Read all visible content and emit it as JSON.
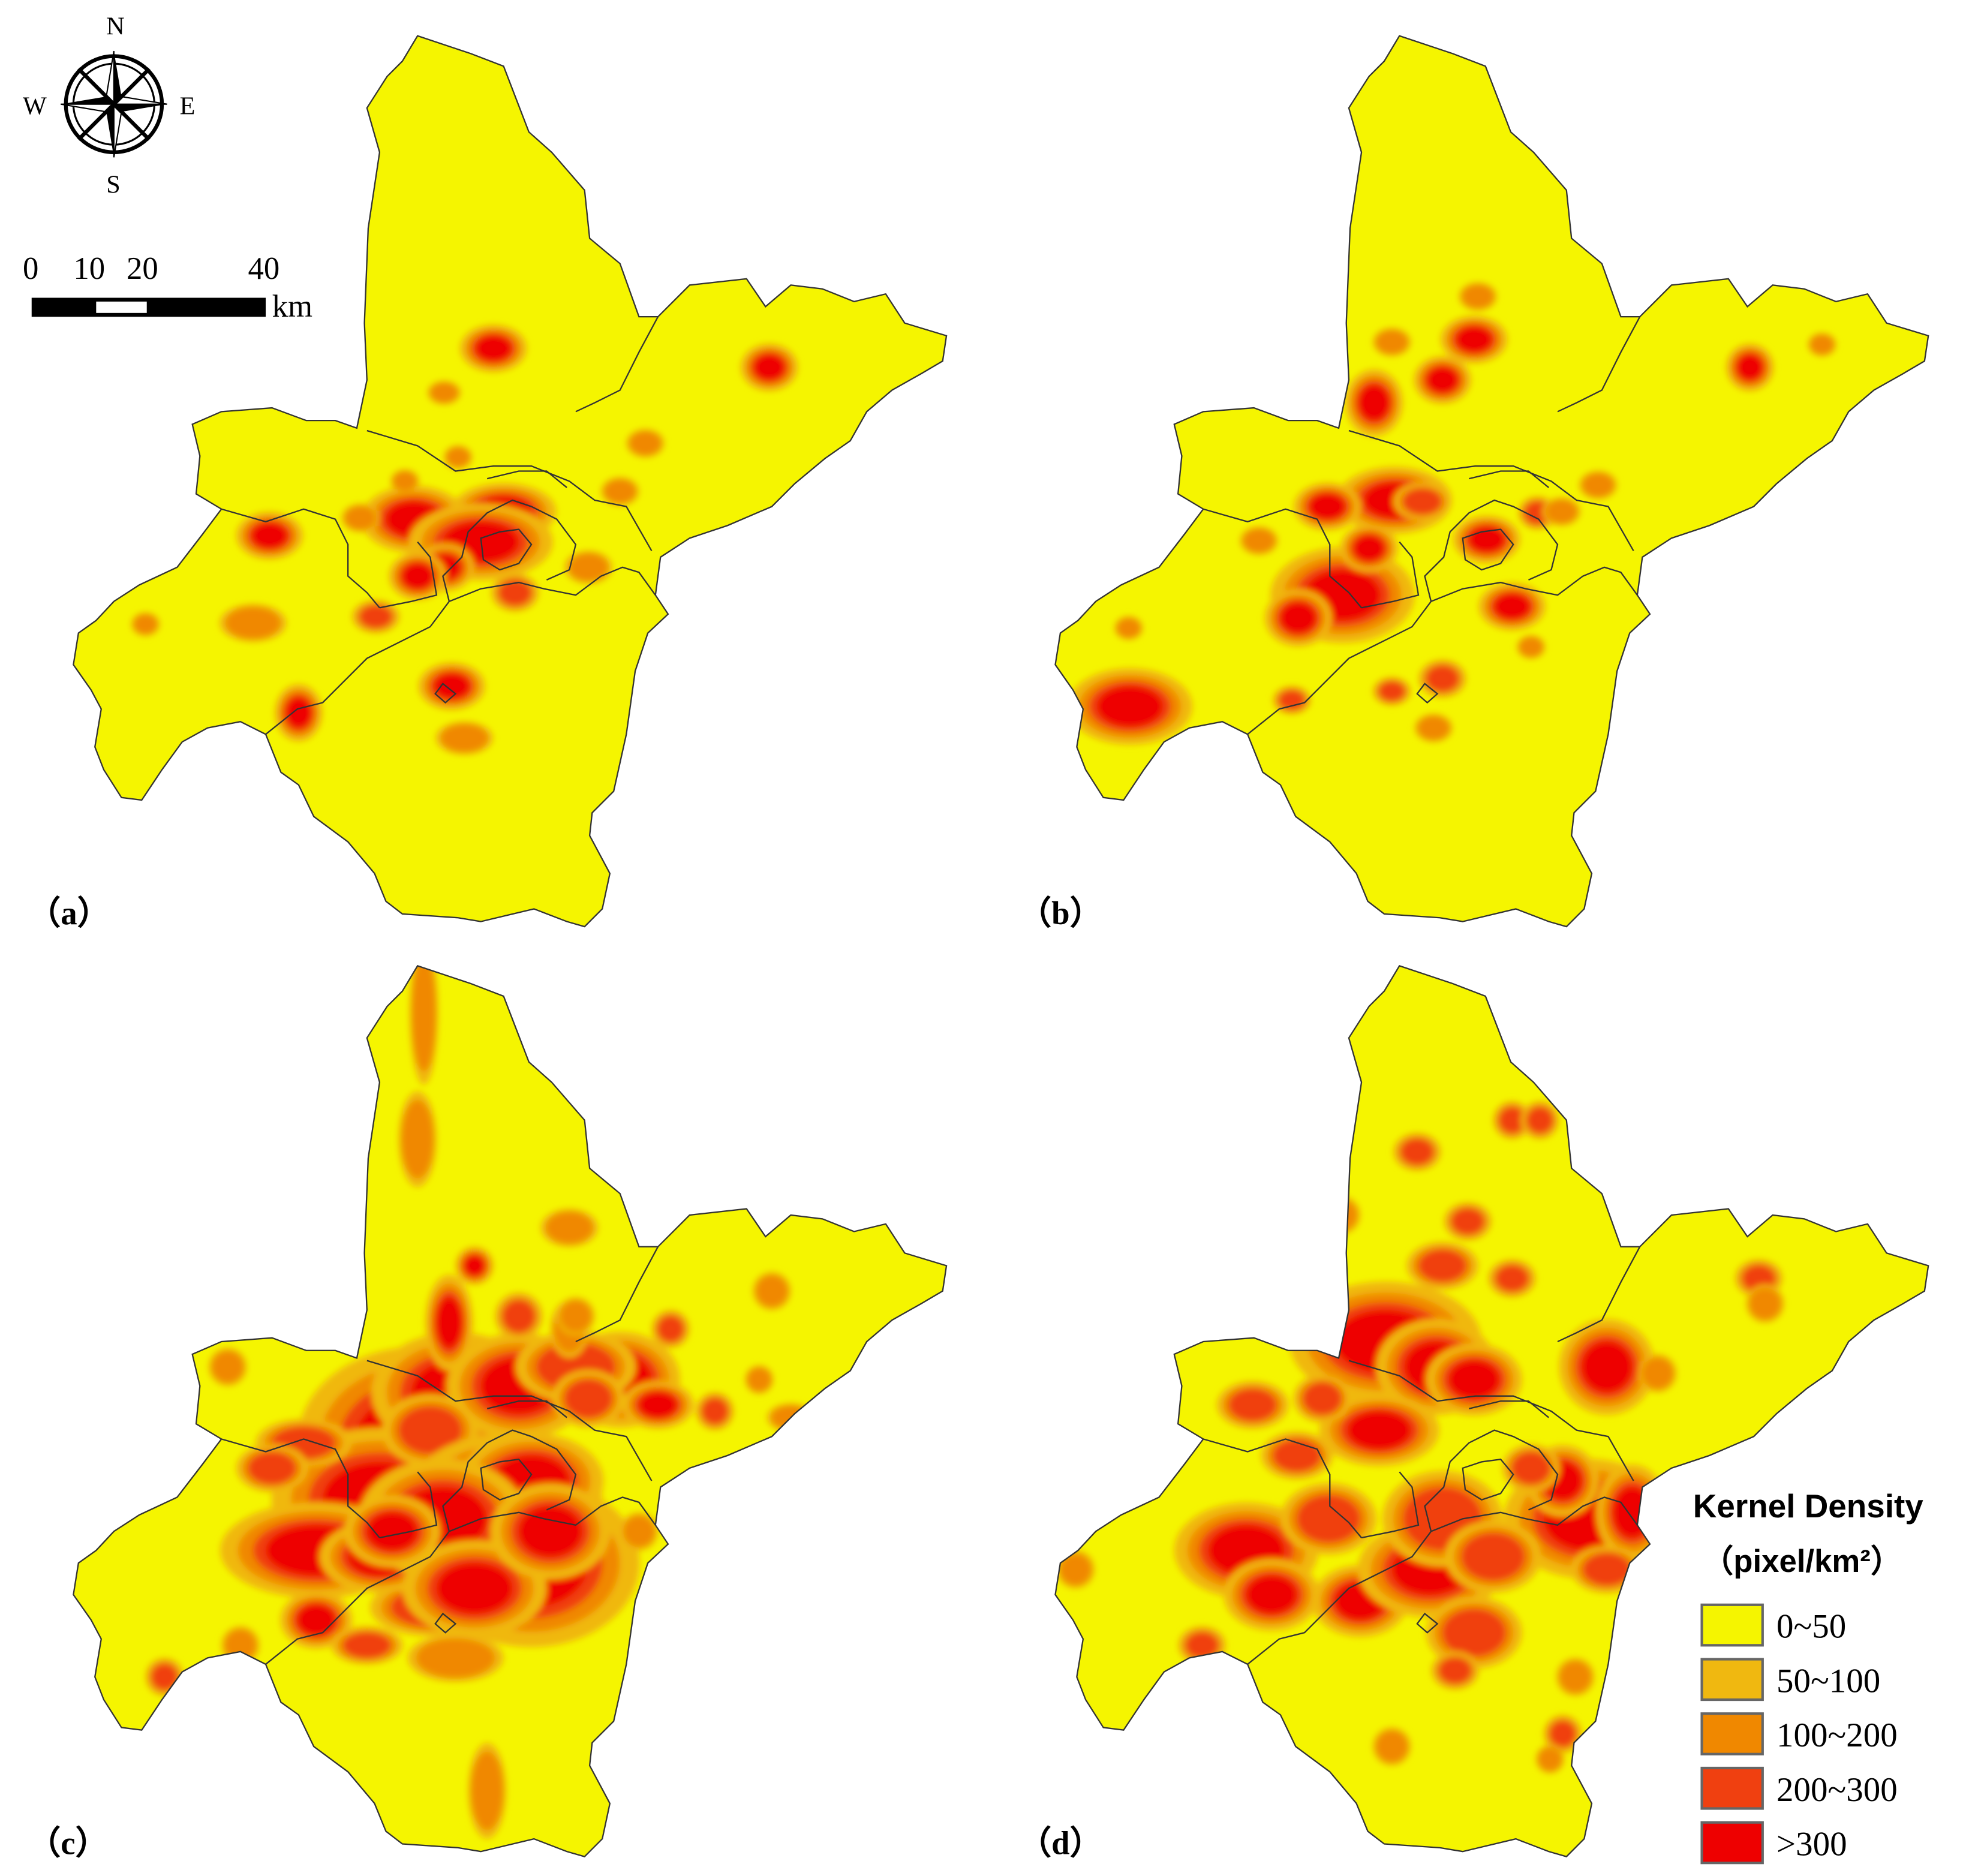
{
  "panels": [
    {
      "label": "（a）",
      "hotspots": [
        [
          390,
          275,
          14,
          10,
          4
        ],
        [
          608,
          290,
          12,
          10,
          4
        ],
        [
          213,
          423,
          14,
          10,
          4
        ],
        [
          327,
          410,
          22,
          14,
          4
        ],
        [
          398,
          404,
          22,
          12,
          4
        ],
        [
          380,
          428,
          30,
          16,
          4
        ],
        [
          352,
          448,
          12,
          10,
          4
        ],
        [
          330,
          455,
          12,
          10,
          4
        ],
        [
          297,
          487,
          10,
          7,
          3
        ],
        [
          200,
          492,
          14,
          8,
          2
        ],
        [
          236,
          563,
          10,
          12,
          4
        ],
        [
          357,
          542,
          14,
          10,
          4
        ],
        [
          367,
          583,
          12,
          7,
          2
        ],
        [
          351,
          310,
          7,
          5,
          2
        ],
        [
          407,
          468,
          10,
          8,
          3
        ],
        [
          465,
          448,
          10,
          7,
          2
        ],
        [
          510,
          350,
          8,
          6,
          2
        ],
        [
          490,
          388,
          8,
          6,
          2
        ],
        [
          320,
          380,
          6,
          5,
          2
        ],
        [
          285,
          409,
          8,
          6,
          2
        ],
        [
          115,
          493,
          6,
          5,
          2
        ],
        [
          362,
          361,
          6,
          5,
          2
        ]
      ]
    },
    {
      "label": "（b）",
      "hotspots": [
        [
          1086,
          318,
          12,
          14,
          4
        ],
        [
          1165,
          268,
          14,
          10,
          4
        ],
        [
          1140,
          300,
          12,
          10,
          4
        ],
        [
          1102,
          395,
          24,
          14,
          4
        ],
        [
          1049,
          400,
          14,
          10,
          4
        ],
        [
          1061,
          470,
          30,
          20,
          4
        ],
        [
          1082,
          433,
          12,
          10,
          4
        ],
        [
          1124,
          396,
          12,
          8,
          3
        ],
        [
          1175,
          426,
          14,
          10,
          4
        ],
        [
          1195,
          479,
          14,
          10,
          4
        ],
        [
          1215,
          405,
          8,
          7,
          3
        ],
        [
          1026,
          488,
          14,
          12,
          4
        ],
        [
          893,
          558,
          26,
          16,
          4
        ],
        [
          1021,
          553,
          8,
          6,
          3
        ],
        [
          1140,
          536,
          10,
          8,
          3
        ],
        [
          1100,
          546,
          8,
          6,
          3
        ],
        [
          1383,
          290,
          10,
          10,
          4
        ],
        [
          1263,
          383,
          8,
          6,
          2
        ],
        [
          1440,
          272,
          6,
          5,
          2
        ],
        [
          1168,
          234,
          8,
          6,
          2
        ],
        [
          1100,
          270,
          8,
          6,
          2
        ],
        [
          995,
          427,
          8,
          6,
          2
        ],
        [
          1234,
          404,
          8,
          6,
          2
        ],
        [
          1133,
          575,
          8,
          6,
          2
        ],
        [
          1210,
          511,
          6,
          5,
          2
        ],
        [
          892,
          496,
          6,
          5,
          2
        ]
      ]
    },
    {
      "label": "（c）",
      "hotspots": [
        [
          330,
          1140,
          50,
          40,
          4
        ],
        [
          390,
          1220,
          50,
          40,
          4
        ],
        [
          420,
          1235,
          45,
          35,
          4
        ],
        [
          360,
          1100,
          35,
          25,
          4
        ],
        [
          300,
          1185,
          45,
          30,
          4
        ],
        [
          250,
          1225,
          40,
          20,
          4
        ],
        [
          410,
          1095,
          30,
          22,
          4
        ],
        [
          490,
          1090,
          25,
          20,
          4
        ],
        [
          520,
          1110,
          15,
          10,
          4
        ],
        [
          355,
          1045,
          10,
          20,
          4
        ],
        [
          375,
          1000,
          8,
          8,
          4
        ],
        [
          455,
          1080,
          25,
          15,
          3
        ],
        [
          465,
          1105,
          15,
          12,
          3
        ],
        [
          250,
          1280,
          15,
          12,
          4
        ],
        [
          240,
          1140,
          20,
          10,
          3
        ],
        [
          215,
          1160,
          15,
          10,
          3
        ],
        [
          340,
          1270,
          25,
          12,
          3
        ],
        [
          360,
          1310,
          20,
          10,
          2
        ],
        [
          290,
          1300,
          15,
          8,
          3
        ],
        [
          330,
          900,
          8,
          20,
          2
        ],
        [
          335,
          800,
          6,
          30,
          2
        ],
        [
          385,
          1415,
          8,
          20,
          2
        ],
        [
          130,
          1325,
          8,
          8,
          3
        ],
        [
          190,
          1300,
          8,
          8,
          2
        ],
        [
          180,
          1080,
          8,
          8,
          2
        ],
        [
          450,
          970,
          12,
          8,
          2
        ],
        [
          530,
          1050,
          8,
          8,
          3
        ],
        [
          610,
          1020,
          8,
          8,
          2
        ],
        [
          565,
          1115,
          8,
          8,
          3
        ],
        [
          450,
          1050,
          8,
          12,
          2
        ],
        [
          410,
          1040,
          10,
          10,
          3
        ],
        [
          455,
          1040,
          8,
          8,
          2
        ],
        [
          600,
          1090,
          6,
          6,
          2
        ],
        [
          505,
          1210,
          8,
          8,
          2
        ],
        [
          360,
          1165,
          20,
          15,
          4
        ],
        [
          300,
          1230,
          25,
          15,
          4
        ],
        [
          340,
          1130,
          20,
          15,
          3
        ],
        [
          625,
          1120,
          10,
          6,
          2
        ],
        [
          400,
          1180,
          40,
          25,
          4
        ],
        [
          420,
          1170,
          30,
          20,
          4
        ],
        [
          350,
          1200,
          35,
          25,
          4
        ],
        [
          310,
          1210,
          20,
          15,
          4
        ],
        [
          375,
          1255,
          30,
          20,
          4
        ],
        [
          435,
          1210,
          25,
          20,
          4
        ]
      ]
    },
    {
      "label": "（d）",
      "hotspots": [
        [
          1255,
          1200,
          35,
          25,
          4
        ],
        [
          1290,
          1195,
          15,
          20,
          4
        ],
        [
          1235,
          1170,
          15,
          15,
          4
        ],
        [
          1270,
          1080,
          20,
          20,
          4
        ],
        [
          1095,
          1060,
          40,
          25,
          4
        ],
        [
          1135,
          1080,
          25,
          20,
          4
        ],
        [
          1090,
          1130,
          25,
          15,
          4
        ],
        [
          1165,
          1090,
          20,
          15,
          4
        ],
        [
          985,
          1225,
          30,
          20,
          4
        ],
        [
          1005,
          1260,
          20,
          15,
          4
        ],
        [
          1075,
          1265,
          20,
          15,
          4
        ],
        [
          1130,
          1240,
          30,
          20,
          4
        ],
        [
          1140,
          1200,
          25,
          20,
          3
        ],
        [
          1180,
          1230,
          20,
          15,
          3
        ],
        [
          1165,
          1290,
          20,
          15,
          3
        ],
        [
          1050,
          1200,
          20,
          15,
          3
        ],
        [
          990,
          1110,
          15,
          10,
          3
        ],
        [
          1025,
          1150,
          15,
          10,
          3
        ],
        [
          1045,
          1105,
          12,
          10,
          3
        ],
        [
          1140,
          1000,
          15,
          10,
          3
        ],
        [
          1160,
          965,
          10,
          8,
          3
        ],
        [
          1195,
          1010,
          10,
          8,
          3
        ],
        [
          1120,
          910,
          10,
          8,
          3
        ],
        [
          1195,
          885,
          8,
          8,
          3
        ],
        [
          1217,
          885,
          8,
          8,
          3
        ],
        [
          1390,
          1010,
          10,
          8,
          3
        ],
        [
          1395,
          1030,
          8,
          8,
          2
        ],
        [
          1235,
          1370,
          8,
          8,
          3
        ],
        [
          1225,
          1390,
          6,
          6,
          2
        ],
        [
          1100,
          1380,
          8,
          8,
          2
        ],
        [
          1150,
          1320,
          10,
          8,
          3
        ],
        [
          950,
          1300,
          10,
          8,
          3
        ],
        [
          850,
          1240,
          8,
          8,
          2
        ],
        [
          1060,
          960,
          8,
          8,
          2
        ],
        [
          1245,
          1325,
          8,
          8,
          2
        ],
        [
          1310,
          1085,
          8,
          8,
          2
        ],
        [
          1210,
          1160,
          12,
          10,
          3
        ],
        [
          1270,
          1240,
          15,
          10,
          3
        ]
      ]
    }
  ],
  "bands": [
    {
      "label": "0~50",
      "color": "#f5f500"
    },
    {
      "label": "50~100",
      "color": "#f0b810"
    },
    {
      "label": "100~200",
      "color": "#f08800"
    },
    {
      "label": "200~300",
      "color": "#f04010"
    },
    {
      "label": ">300",
      "color": "#ee0000"
    }
  ],
  "boundary_color": "#333333",
  "legend": {
    "title": "Kernel Density",
    "unit": "（pixel/km²）"
  },
  "compass": {
    "n": "N",
    "s": "S",
    "e": "E",
    "w": "W"
  },
  "scalebar": {
    "ticks": [
      "0",
      "10",
      "20",
      "40"
    ],
    "unit": "km"
  }
}
